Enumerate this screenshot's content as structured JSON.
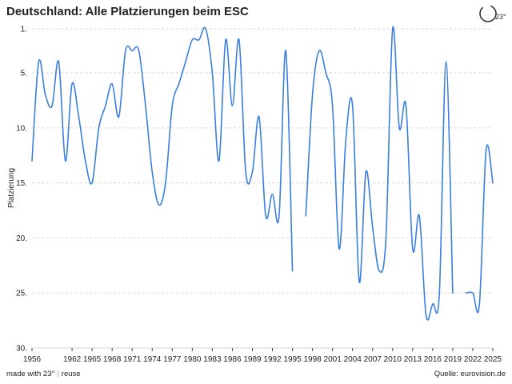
{
  "header": {
    "title": "Deutschland: Alle Platzierungen beim ESC",
    "logo_text": "23°"
  },
  "footer": {
    "made_with": "made with 23°",
    "reuse": "reuse",
    "source": "Quelle: eurovision.de"
  },
  "colors": {
    "line": "#3a7fdc",
    "grid": "#d6d6d6",
    "text": "#222222"
  },
  "chart_data": {
    "type": "line",
    "title": "Deutschland: Alle Platzierungen beim ESC",
    "xlabel": "",
    "ylabel": "Platzierung",
    "y_inverted": true,
    "ylim": [
      1,
      30
    ],
    "xlim": [
      1956,
      2025
    ],
    "y_ticks": [
      1,
      5,
      10,
      15,
      20,
      25,
      30
    ],
    "y_tick_labels": [
      "1.",
      "5.",
      "10.",
      "15.",
      "20.",
      "25.",
      "30."
    ],
    "x_ticks": [
      1956,
      1962,
      1965,
      1968,
      1971,
      1974,
      1977,
      1980,
      1983,
      1986,
      1989,
      1992,
      1995,
      1998,
      2001,
      2004,
      2007,
      2010,
      2013,
      2016,
      2019,
      2022,
      2025
    ],
    "grid": true,
    "series": [
      {
        "values": [
          [
            1956,
            13
          ],
          [
            1957,
            4
          ],
          [
            1958,
            7
          ],
          [
            1959,
            8
          ],
          [
            1960,
            4
          ],
          [
            1961,
            13
          ],
          [
            1962,
            6
          ],
          [
            1963,
            9
          ],
          [
            1964,
            13
          ],
          [
            1965,
            15
          ],
          [
            1966,
            10
          ],
          [
            1967,
            8
          ],
          [
            1968,
            6
          ],
          [
            1969,
            9
          ],
          [
            1970,
            3
          ],
          [
            1971,
            3
          ],
          [
            1972,
            3
          ],
          [
            1973,
            8
          ],
          [
            1974,
            14
          ],
          [
            1975,
            17
          ],
          [
            1976,
            15
          ],
          [
            1977,
            8
          ],
          [
            1978,
            6
          ],
          [
            1979,
            4
          ],
          [
            1980,
            2
          ],
          [
            1981,
            2
          ],
          [
            1982,
            1
          ],
          [
            1983,
            5
          ],
          [
            1984,
            13
          ],
          [
            1985,
            2
          ],
          [
            1986,
            8
          ],
          [
            1987,
            2
          ],
          [
            1988,
            14
          ],
          [
            1989,
            14
          ],
          [
            1990,
            9
          ],
          [
            1991,
            18
          ],
          [
            1992,
            16
          ],
          [
            1993,
            18
          ],
          [
            1994,
            3
          ],
          [
            1995,
            23
          ],
          [
            1996,
            null
          ],
          [
            1997,
            18
          ],
          [
            1998,
            7
          ],
          [
            1999,
            3
          ],
          [
            2000,
            5
          ],
          [
            2001,
            8
          ],
          [
            2002,
            21
          ],
          [
            2003,
            11
          ],
          [
            2004,
            8
          ],
          [
            2005,
            24
          ],
          [
            2006,
            14
          ],
          [
            2007,
            19
          ],
          [
            2008,
            23
          ],
          [
            2009,
            20
          ],
          [
            2010,
            1
          ],
          [
            2011,
            10
          ],
          [
            2012,
            8
          ],
          [
            2013,
            21
          ],
          [
            2014,
            18
          ],
          [
            2015,
            27
          ],
          [
            2016,
            26
          ],
          [
            2017,
            25
          ],
          [
            2018,
            4
          ],
          [
            2019,
            25
          ],
          [
            2020,
            null
          ],
          [
            2021,
            25
          ],
          [
            2022,
            25
          ],
          [
            2023,
            26
          ],
          [
            2024,
            12
          ],
          [
            2025,
            15
          ]
        ]
      }
    ]
  }
}
